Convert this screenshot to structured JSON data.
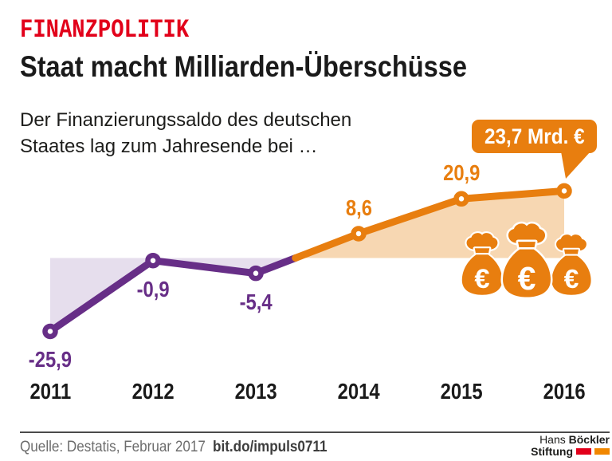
{
  "header": {
    "kicker": "FINANZPOLITIK",
    "title": "Staat macht Milliarden-Überschüsse",
    "subtitle_line1": "Der Finanzierungssaldo des deutschen",
    "subtitle_line2": "Staates lag zum Jahresende bei …"
  },
  "callout": {
    "label": "23,7 Mrd. €"
  },
  "chart_data": {
    "type": "line",
    "title": "Finanzierungssaldo des deutschen Staates zum Jahresende (Mrd. €)",
    "categories": [
      "2011",
      "2012",
      "2013",
      "2014",
      "2015",
      "2016"
    ],
    "values": [
      -25.9,
      -0.9,
      -5.4,
      8.6,
      20.9,
      23.7
    ],
    "value_labels": [
      "-25,9",
      "-0,9",
      "-5,4",
      "8,6",
      "20,9",
      "23,7"
    ],
    "label_positions": [
      "below",
      "below",
      "below",
      "above",
      "above",
      "callout"
    ],
    "unit": "Mrd. €",
    "xlabel": "",
    "ylabel": "",
    "ylim": [
      -30,
      30
    ],
    "baseline": 0,
    "grid": false,
    "legend": false,
    "colors": {
      "negative": "#672e87",
      "negative_fill": "#e6deed",
      "positive": "#e87e0f",
      "positive_fill": "#f7d7b2"
    }
  },
  "icons": {
    "money_bags": {
      "name": "money-bag-euro-icon",
      "count": 3,
      "symbol": "€"
    }
  },
  "footer": {
    "source": "Quelle: Destatis, Februar 2017",
    "link": "bit.do/impuls0711",
    "logo": {
      "line1_normal": "Hans",
      "line1_bold": "Böckler",
      "line2_bold": "Stiftung"
    }
  }
}
